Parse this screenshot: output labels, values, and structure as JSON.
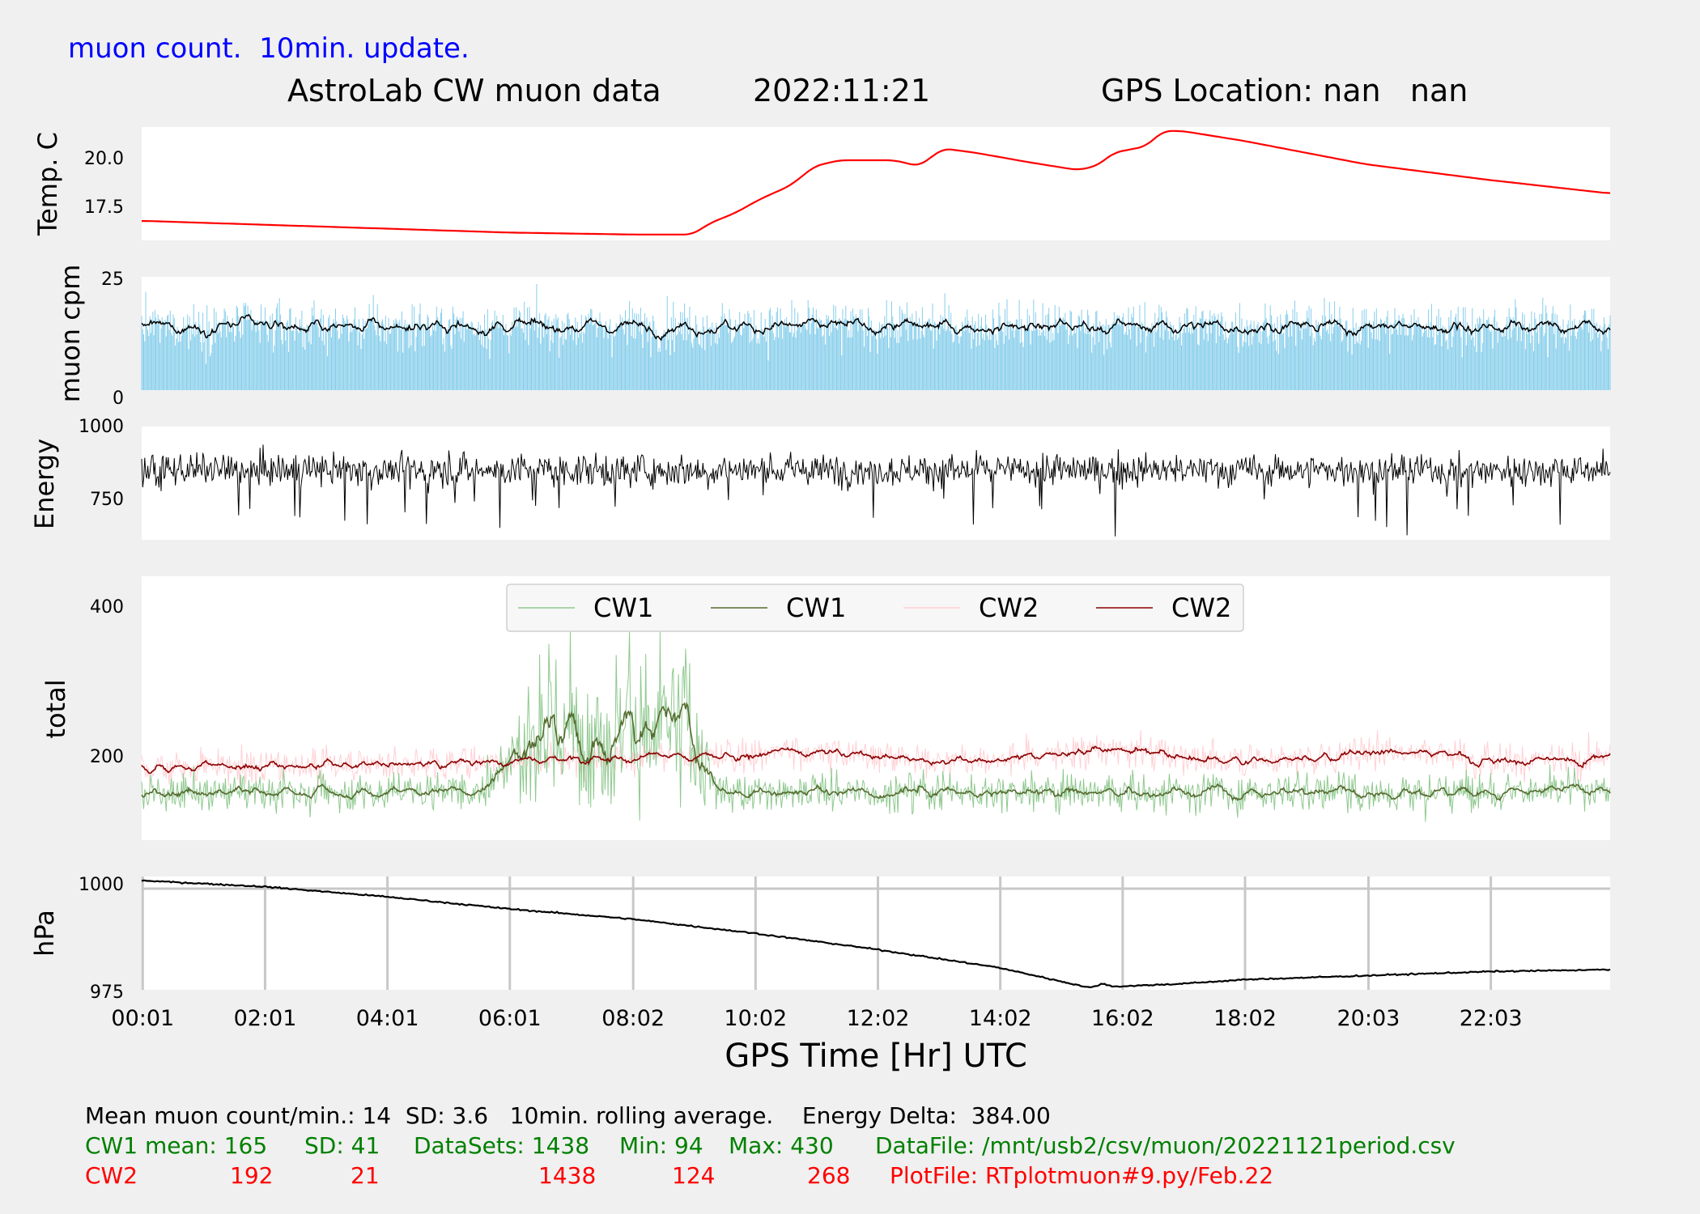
{
  "header": {
    "update_note": "muon count.  10min. update.",
    "title": "AstroLab CW muon data",
    "date": "2022:11:21",
    "gps_location": "GPS Location: nan   nan"
  },
  "colors": {
    "background": "#f0f0f0",
    "plot_bg": "#ffffff",
    "temp_line": "#ff0000",
    "cpm_bar": "#87ceeb",
    "cpm_avg": "#000000",
    "energy_line": "#000000",
    "cw1_raw": "#8fc98f",
    "cw1_avg": "#556b2f",
    "cw2_raw": "#ffd0d4",
    "cw2_avg": "#8b0000",
    "pressure_line": "#000000",
    "grid": "#c8c8c8",
    "cw1_text": "#008000",
    "cw2_text": "#ff0000"
  },
  "chart_data": [
    {
      "type": "line",
      "id": "temperature",
      "ylabel": "Temp. C",
      "yticks": [
        17.5,
        20.0
      ],
      "ylim": [
        15.7,
        21.5
      ],
      "xlim": [
        0,
        24
      ],
      "series": [
        {
          "points": [
            [
              0,
              16.7
            ],
            [
              2,
              16.5
            ],
            [
              4,
              16.3
            ],
            [
              6,
              16.1
            ],
            [
              8,
              16.0
            ],
            [
              9.0,
              16.0
            ],
            [
              9.3,
              16.6
            ],
            [
              9.7,
              17.1
            ],
            [
              10.1,
              17.8
            ],
            [
              10.6,
              18.5
            ],
            [
              11.0,
              19.5
            ],
            [
              11.4,
              19.8
            ],
            [
              12.0,
              19.8
            ],
            [
              12.3,
              19.8
            ],
            [
              12.7,
              19.5
            ],
            [
              13.1,
              20.4
            ],
            [
              13.6,
              20.2
            ],
            [
              14.5,
              19.7
            ],
            [
              15.3,
              19.3
            ],
            [
              15.6,
              19.5
            ],
            [
              15.9,
              20.2
            ],
            [
              16.4,
              20.5
            ],
            [
              16.7,
              21.3
            ],
            [
              17.0,
              21.3
            ],
            [
              18.0,
              20.8
            ],
            [
              20.0,
              19.6
            ],
            [
              22.0,
              18.8
            ],
            [
              24.0,
              18.1
            ]
          ]
        }
      ]
    },
    {
      "type": "bar",
      "id": "muon-cpm",
      "ylabel": "muon cpm",
      "yticks": [
        0,
        25
      ],
      "ylim": [
        0,
        24
      ],
      "xlim": [
        0,
        24
      ],
      "series": [
        {
          "name": "",
          "style": "bars",
          "mean": 13.5,
          "spread": 5
        },
        {
          "name": "",
          "style": "rolling-average",
          "mean": 13.5,
          "spread": 1.5
        }
      ]
    },
    {
      "type": "line",
      "id": "energy",
      "ylabel": "Energy",
      "yticks": [
        750,
        1000
      ],
      "ylim": [
        640,
        1030
      ],
      "xlim": [
        0,
        24
      ],
      "series": [
        {
          "name": "",
          "mean": 880,
          "spread": 55,
          "min": 640,
          "max": 1000
        }
      ]
    },
    {
      "type": "line",
      "id": "total",
      "ylabel": "total",
      "yticks": [
        200,
        400
      ],
      "ylim": [
        85,
        440
      ],
      "xlim": [
        0,
        24
      ],
      "legend": {
        "placement": "top-center",
        "labels": [
          "CW1",
          "CW1",
          "CW2",
          "CW2"
        ]
      },
      "series": [
        {
          "name": "CW1",
          "role": "raw",
          "mean": 165,
          "min": 94,
          "max": 430
        },
        {
          "name": "CW1",
          "role": "rolling-average"
        },
        {
          "name": "CW2",
          "role": "raw",
          "mean": 192,
          "min": 124,
          "max": 268
        },
        {
          "name": "CW2",
          "role": "rolling-average"
        }
      ]
    },
    {
      "type": "line",
      "id": "pressure",
      "ylabel": "hPa",
      "yticks": [
        975,
        1000
      ],
      "ylim": [
        975,
        1003
      ],
      "xlim": [
        0,
        24
      ],
      "grid": true,
      "series": [
        {
          "points": [
            [
              0,
              1002
            ],
            [
              2,
              1000.5
            ],
            [
              4,
              998
            ],
            [
              6,
              995
            ],
            [
              8,
              992.5
            ],
            [
              10,
              989
            ],
            [
              12,
              985
            ],
            [
              14,
              980.5
            ],
            [
              15.5,
              975.5
            ],
            [
              15.7,
              976.5
            ],
            [
              15.9,
              975.8
            ],
            [
              17,
              976.5
            ],
            [
              18,
              977.5
            ],
            [
              20,
              978.5
            ],
            [
              22,
              979.5
            ],
            [
              24,
              980
            ]
          ]
        }
      ]
    }
  ],
  "xaxis": {
    "label": "GPS Time  [Hr] UTC",
    "ticks": [
      {
        "t": 0.017,
        "label": "00:01"
      },
      {
        "t": 2.017,
        "label": "02:01"
      },
      {
        "t": 4.017,
        "label": "04:01"
      },
      {
        "t": 6.017,
        "label": "06:01"
      },
      {
        "t": 8.033,
        "label": "08:02"
      },
      {
        "t": 10.033,
        "label": "10:02"
      },
      {
        "t": 12.033,
        "label": "12:02"
      },
      {
        "t": 14.033,
        "label": "14:02"
      },
      {
        "t": 16.033,
        "label": "16:02"
      },
      {
        "t": 18.033,
        "label": "18:02"
      },
      {
        "t": 20.05,
        "label": "20:03"
      },
      {
        "t": 22.05,
        "label": "22:03"
      }
    ]
  },
  "stats": {
    "line1": "Mean muon count/min.: 14  SD: 3.6   10min. rolling average.    Energy Delta:  384.00",
    "cw1": {
      "label": "CW1 mean: 165",
      "sd": "SD: 41",
      "datasets": "DataSets: 1438",
      "min": "Min: 94",
      "max": "Max: 430",
      "file": "DataFile: /mnt/usb2/csv/muon/20221121period.csv"
    },
    "cw2": {
      "label": "CW2",
      "mean": "192",
      "sd": "21",
      "datasets": "1438",
      "min": "124",
      "max": "268",
      "file": "PlotFile: RTplotmuon#9.py/Feb.22"
    }
  }
}
